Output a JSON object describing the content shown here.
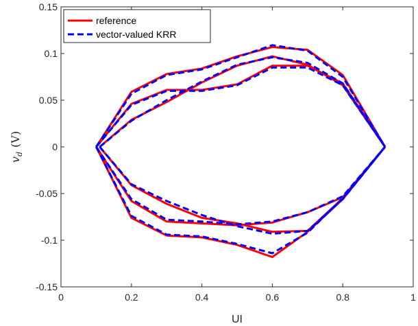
{
  "chart_data": {
    "type": "line",
    "xlabel": "UI",
    "ylabel": {
      "main": "v",
      "sub": "d",
      "unit": "(V)"
    },
    "xlim": [
      0,
      1
    ],
    "ylim": [
      -0.15,
      0.15
    ],
    "xticks": [
      0,
      0.2,
      0.4,
      0.6,
      0.8,
      1
    ],
    "xtick_labels": [
      "0",
      "0.2",
      "0.4",
      "0.6",
      "0.8",
      "1"
    ],
    "yticks": [
      -0.15,
      -0.1,
      -0.05,
      0,
      0.05,
      0.1,
      0.15
    ],
    "ytick_labels": [
      "-0.15",
      "-0.1",
      "-0.05",
      "0",
      "0.05",
      "0.1",
      "0.15"
    ],
    "grid": false,
    "legend_position": "top-left",
    "series": [
      {
        "name": "reference",
        "color": "#ff0000",
        "style": "solid",
        "curves": [
          {
            "x": [
              0.1,
              0.2,
              0.3,
              0.4,
              0.5,
              0.6,
              0.7,
              0.8,
              0.92
            ],
            "y": [
              0,
              0.059,
              0.078,
              0.084,
              0.097,
              0.107,
              0.104,
              0.077,
              0
            ]
          },
          {
            "x": [
              0.1,
              0.2,
              0.3,
              0.4,
              0.5,
              0.6,
              0.7,
              0.8,
              0.92
            ],
            "y": [
              0,
              0.046,
              0.061,
              0.061,
              0.067,
              0.087,
              0.087,
              0.068,
              0
            ]
          },
          {
            "x": [
              0.11,
              0.2,
              0.3,
              0.4,
              0.5,
              0.6,
              0.7,
              0.8,
              0.92
            ],
            "y": [
              0,
              0.029,
              0.048,
              0.069,
              0.087,
              0.097,
              0.088,
              0.066,
              0
            ]
          },
          {
            "x": [
              0.1,
              0.2,
              0.3,
              0.4,
              0.5,
              0.6,
              0.7,
              0.8,
              0.92
            ],
            "y": [
              0,
              -0.076,
              -0.095,
              -0.097,
              -0.105,
              -0.118,
              -0.091,
              -0.056,
              0
            ]
          },
          {
            "x": [
              0.1,
              0.2,
              0.3,
              0.4,
              0.5,
              0.6,
              0.7,
              0.8,
              0.92
            ],
            "y": [
              0,
              -0.058,
              -0.08,
              -0.082,
              -0.084,
              -0.081,
              -0.07,
              -0.054,
              0
            ]
          },
          {
            "x": [
              0.11,
              0.2,
              0.3,
              0.4,
              0.5,
              0.6,
              0.7,
              0.8,
              0.92
            ],
            "y": [
              0,
              -0.041,
              -0.061,
              -0.076,
              -0.082,
              -0.091,
              -0.09,
              -0.055,
              0
            ]
          }
        ]
      },
      {
        "name": "vector-valued KRR",
        "color": "#0000ff",
        "style": "dashed",
        "curves": [
          {
            "x": [
              0.1,
              0.2,
              0.3,
              0.4,
              0.5,
              0.6,
              0.7,
              0.8,
              0.92
            ],
            "y": [
              0,
              0.057,
              0.077,
              0.083,
              0.096,
              0.109,
              0.103,
              0.075,
              0
            ]
          },
          {
            "x": [
              0.1,
              0.2,
              0.3,
              0.4,
              0.5,
              0.6,
              0.7,
              0.8,
              0.92
            ],
            "y": [
              0,
              0.045,
              0.06,
              0.06,
              0.066,
              0.085,
              0.085,
              0.066,
              0
            ]
          },
          {
            "x": [
              0.11,
              0.2,
              0.3,
              0.4,
              0.5,
              0.6,
              0.7,
              0.8,
              0.92
            ],
            "y": [
              0,
              0.028,
              0.05,
              0.07,
              0.088,
              0.096,
              0.09,
              0.068,
              0
            ]
          },
          {
            "x": [
              0.1,
              0.2,
              0.3,
              0.4,
              0.5,
              0.6,
              0.7,
              0.8,
              0.92
            ],
            "y": [
              0,
              -0.074,
              -0.094,
              -0.096,
              -0.104,
              -0.114,
              -0.092,
              -0.055,
              0
            ]
          },
          {
            "x": [
              0.1,
              0.2,
              0.3,
              0.4,
              0.5,
              0.6,
              0.7,
              0.8,
              0.92
            ],
            "y": [
              0,
              -0.056,
              -0.078,
              -0.08,
              -0.083,
              -0.08,
              -0.07,
              -0.053,
              0
            ]
          },
          {
            "x": [
              0.11,
              0.2,
              0.3,
              0.4,
              0.5,
              0.6,
              0.7,
              0.8,
              0.92
            ],
            "y": [
              0,
              -0.04,
              -0.058,
              -0.073,
              -0.085,
              -0.093,
              -0.09,
              -0.056,
              0
            ]
          }
        ]
      }
    ]
  }
}
